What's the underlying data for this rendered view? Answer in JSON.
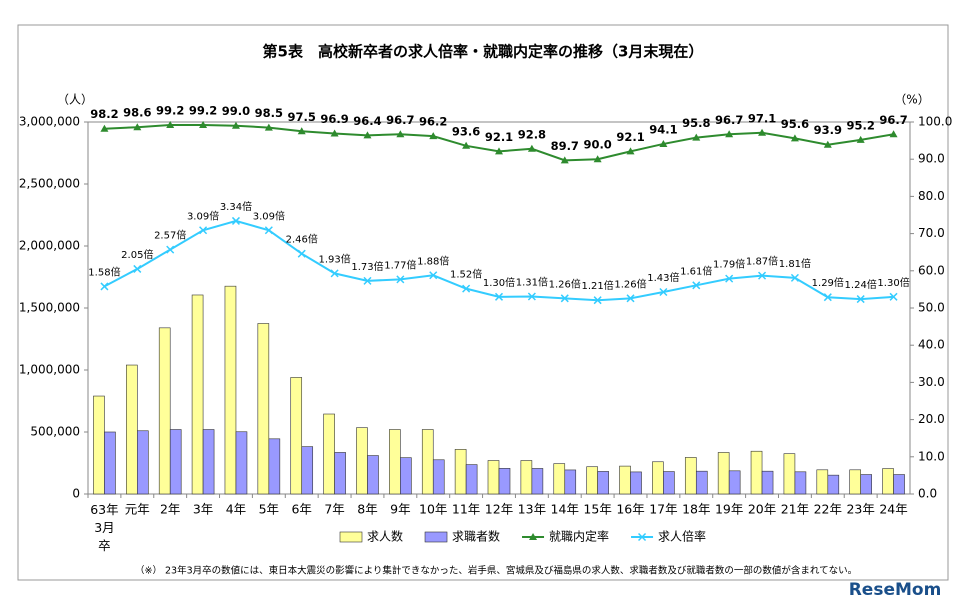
{
  "chart_data": {
    "type": "bar-line",
    "title": "第5表　高校新卒者の求人倍率・就職内定率の推移（3月末現在）",
    "y_unit": "（人）",
    "y2_unit": "（%）",
    "note": "（※）  23年3月卒の数値には、東日本大震災の影響により集計できなかった、岩手県、宮城県及び福島県の求人数、求職者数及び就職者数の一部の数値が含まれてない。",
    "source_logo": "ReseMom",
    "categories": [
      "63年3月卒",
      "元年",
      "2年",
      "3年",
      "4年",
      "5年",
      "6年",
      "7年",
      "8年",
      "9年",
      "10年",
      "11年",
      "12年",
      "13年",
      "14年",
      "15年",
      "16年",
      "17年",
      "18年",
      "19年",
      "20年",
      "21年",
      "22年",
      "23年",
      "24年"
    ],
    "ylim": [
      0,
      3000000
    ],
    "yticks": [
      0,
      {
        "value": 500000,
        "label": "500,000"
      },
      {
        "value": 1000000,
        "label": "1,000,000"
      },
      {
        "value": 1500000,
        "label": "1,500,000"
      },
      {
        "value": 2000000,
        "label": "2,000,000"
      },
      {
        "value": 2500000,
        "label": "2,500,000"
      },
      {
        "value": 3000000,
        "label": "3,000,000"
      }
    ],
    "y2lim": [
      0,
      100
    ],
    "y2ticks": [
      {
        "value": 0,
        "label": "0.0"
      },
      {
        "value": 10,
        "label": "10.0"
      },
      {
        "value": 20,
        "label": "20.0"
      },
      {
        "value": 30,
        "label": "30.0"
      },
      {
        "value": 40,
        "label": "40.0"
      },
      {
        "value": 50,
        "label": "50.0"
      },
      {
        "value": 60,
        "label": "60.0"
      },
      {
        "value": 70,
        "label": "70.0"
      },
      {
        "value": 80,
        "label": "80.0"
      },
      {
        "value": 90,
        "label": "90.0"
      },
      {
        "value": 100,
        "label": "100.0"
      }
    ],
    "y3lim": [
      -4,
      6
    ],
    "series": [
      {
        "name": "求人数",
        "kind": "bar",
        "color": "#ffff99",
        "values": [
          790000,
          1040000,
          1340000,
          1605000,
          1676000,
          1375000,
          940000,
          645000,
          535000,
          520000,
          520000,
          360000,
          270000,
          270000,
          245000,
          220000,
          225000,
          260000,
          295000,
          335000,
          345000,
          325000,
          195000,
          195000,
          205000
        ]
      },
      {
        "name": "求職者数",
        "kind": "bar",
        "color": "#9999ff",
        "values": [
          500000,
          510000,
          520000,
          520000,
          502000,
          445000,
          382000,
          335000,
          310000,
          293000,
          276000,
          237000,
          207000,
          206000,
          194000,
          182000,
          178000,
          181000,
          184000,
          187000,
          184000,
          179000,
          152000,
          157000,
          157000
        ]
      },
      {
        "name": "就職内定率",
        "kind": "line",
        "marker": "triangle",
        "axis": "y2",
        "color": "#2e8b2e",
        "values": [
          98.2,
          98.6,
          99.2,
          99.2,
          99.0,
          98.5,
          97.5,
          96.9,
          96.4,
          96.7,
          96.2,
          93.6,
          92.1,
          92.8,
          89.7,
          90.0,
          92.1,
          94.1,
          95.8,
          96.7,
          97.1,
          95.6,
          93.9,
          95.2,
          96.7
        ],
        "value_labels": [
          "98.2",
          "98.6",
          "99.2",
          "99.2",
          "99.0",
          "98.5",
          "97.5",
          "96.9",
          "96.4",
          "96.7",
          "96.2",
          "93.6",
          "92.1",
          "92.8",
          "89.7",
          "90.0",
          "92.1",
          "94.1",
          "95.8",
          "96.7",
          "97.1",
          "95.6",
          "93.9",
          "95.2",
          "96.7"
        ]
      },
      {
        "name": "求人倍率",
        "kind": "line",
        "marker": "x",
        "axis": "y3",
        "color": "#33ccff",
        "values": [
          1.58,
          2.05,
          2.57,
          3.09,
          3.34,
          3.09,
          2.46,
          1.93,
          1.73,
          1.77,
          1.88,
          1.52,
          1.3,
          1.31,
          1.26,
          1.21,
          1.26,
          1.43,
          1.61,
          1.79,
          1.87,
          1.81,
          1.29,
          1.24,
          1.3
        ],
        "value_labels": [
          "1.58倍",
          "2.05倍",
          "2.57倍",
          "3.09倍",
          "3.34倍",
          "3.09倍",
          "2.46倍",
          "1.93倍",
          "1.73倍",
          "1.77倍",
          "1.88倍",
          "1.52倍",
          "1.30倍",
          "1.31倍",
          "1.26倍",
          "1.21倍",
          "1.26倍",
          "1.43倍",
          "1.61倍",
          "1.79倍",
          "1.87倍",
          "1.81倍",
          "1.29倍",
          "1.24倍",
          "1.30倍"
        ]
      }
    ]
  }
}
